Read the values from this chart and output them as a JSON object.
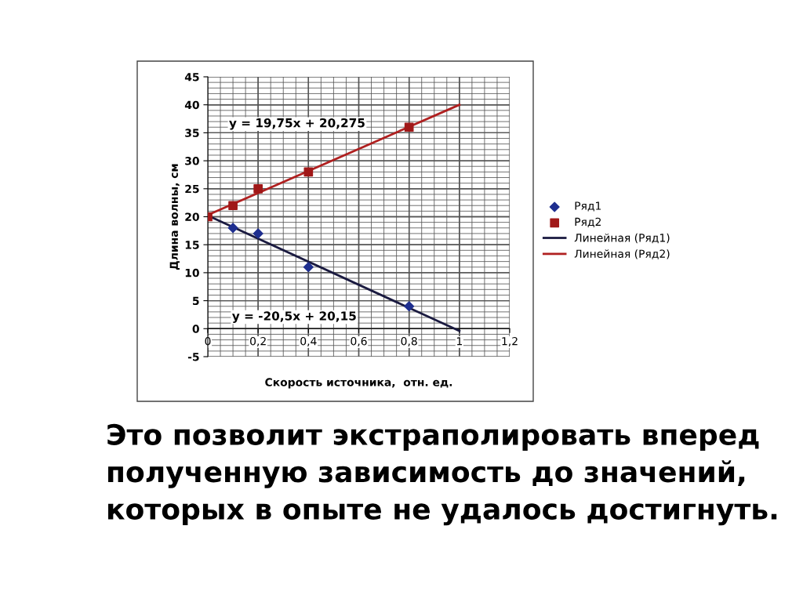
{
  "chart_data": {
    "type": "scatter",
    "xlabel": "Скорость источника,  отн. ед.",
    "ylabel": "Длина волны, см",
    "series": [
      {
        "name": "Ряд1",
        "marker": "diamond",
        "color": "#1f2f8f",
        "x": [
          0.1,
          0.2,
          0.4,
          0.8
        ],
        "values": [
          18,
          17,
          11,
          4
        ]
      },
      {
        "name": "Ряд2",
        "marker": "square",
        "color": "#a01818",
        "x": [
          0,
          0.1,
          0.2,
          0.4,
          0.8
        ],
        "values": [
          20,
          22,
          25,
          28,
          36
        ]
      },
      {
        "name": "Линейная (Ряд1)",
        "type": "line",
        "marker": "none",
        "color": "#1a1a40",
        "x": [
          0,
          1
        ],
        "values": [
          20.2,
          -0.4
        ]
      },
      {
        "name": "Линейная (Ряд2)",
        "type": "line",
        "marker": "none",
        "color": "#b02020",
        "x": [
          0,
          1
        ],
        "values": [
          20.3,
          40
        ]
      }
    ],
    "xlim": [
      0,
      1.2
    ],
    "ylim": [
      -5,
      45
    ],
    "xticks": [
      0,
      {
        "value": 0.2,
        "label": "0,2"
      },
      {
        "value": 0.4,
        "label": "0,4"
      },
      {
        "value": 0.6,
        "label": "0,6"
      },
      {
        "value": 0.8,
        "label": "0,8"
      },
      1,
      {
        "value": 1.2,
        "label": "1,2"
      }
    ],
    "yticks": [
      -5,
      0,
      5,
      10,
      15,
      20,
      25,
      30,
      35,
      40,
      45
    ],
    "grid": true,
    "legend": "right",
    "annotations": [
      "y = 19,75x + 20,275",
      "y = -20,5x + 20,15",
      "Это позволит экстраполировать вперед полученную зависимость до значений, которых в опыте не удалось достигнуть."
    ]
  }
}
